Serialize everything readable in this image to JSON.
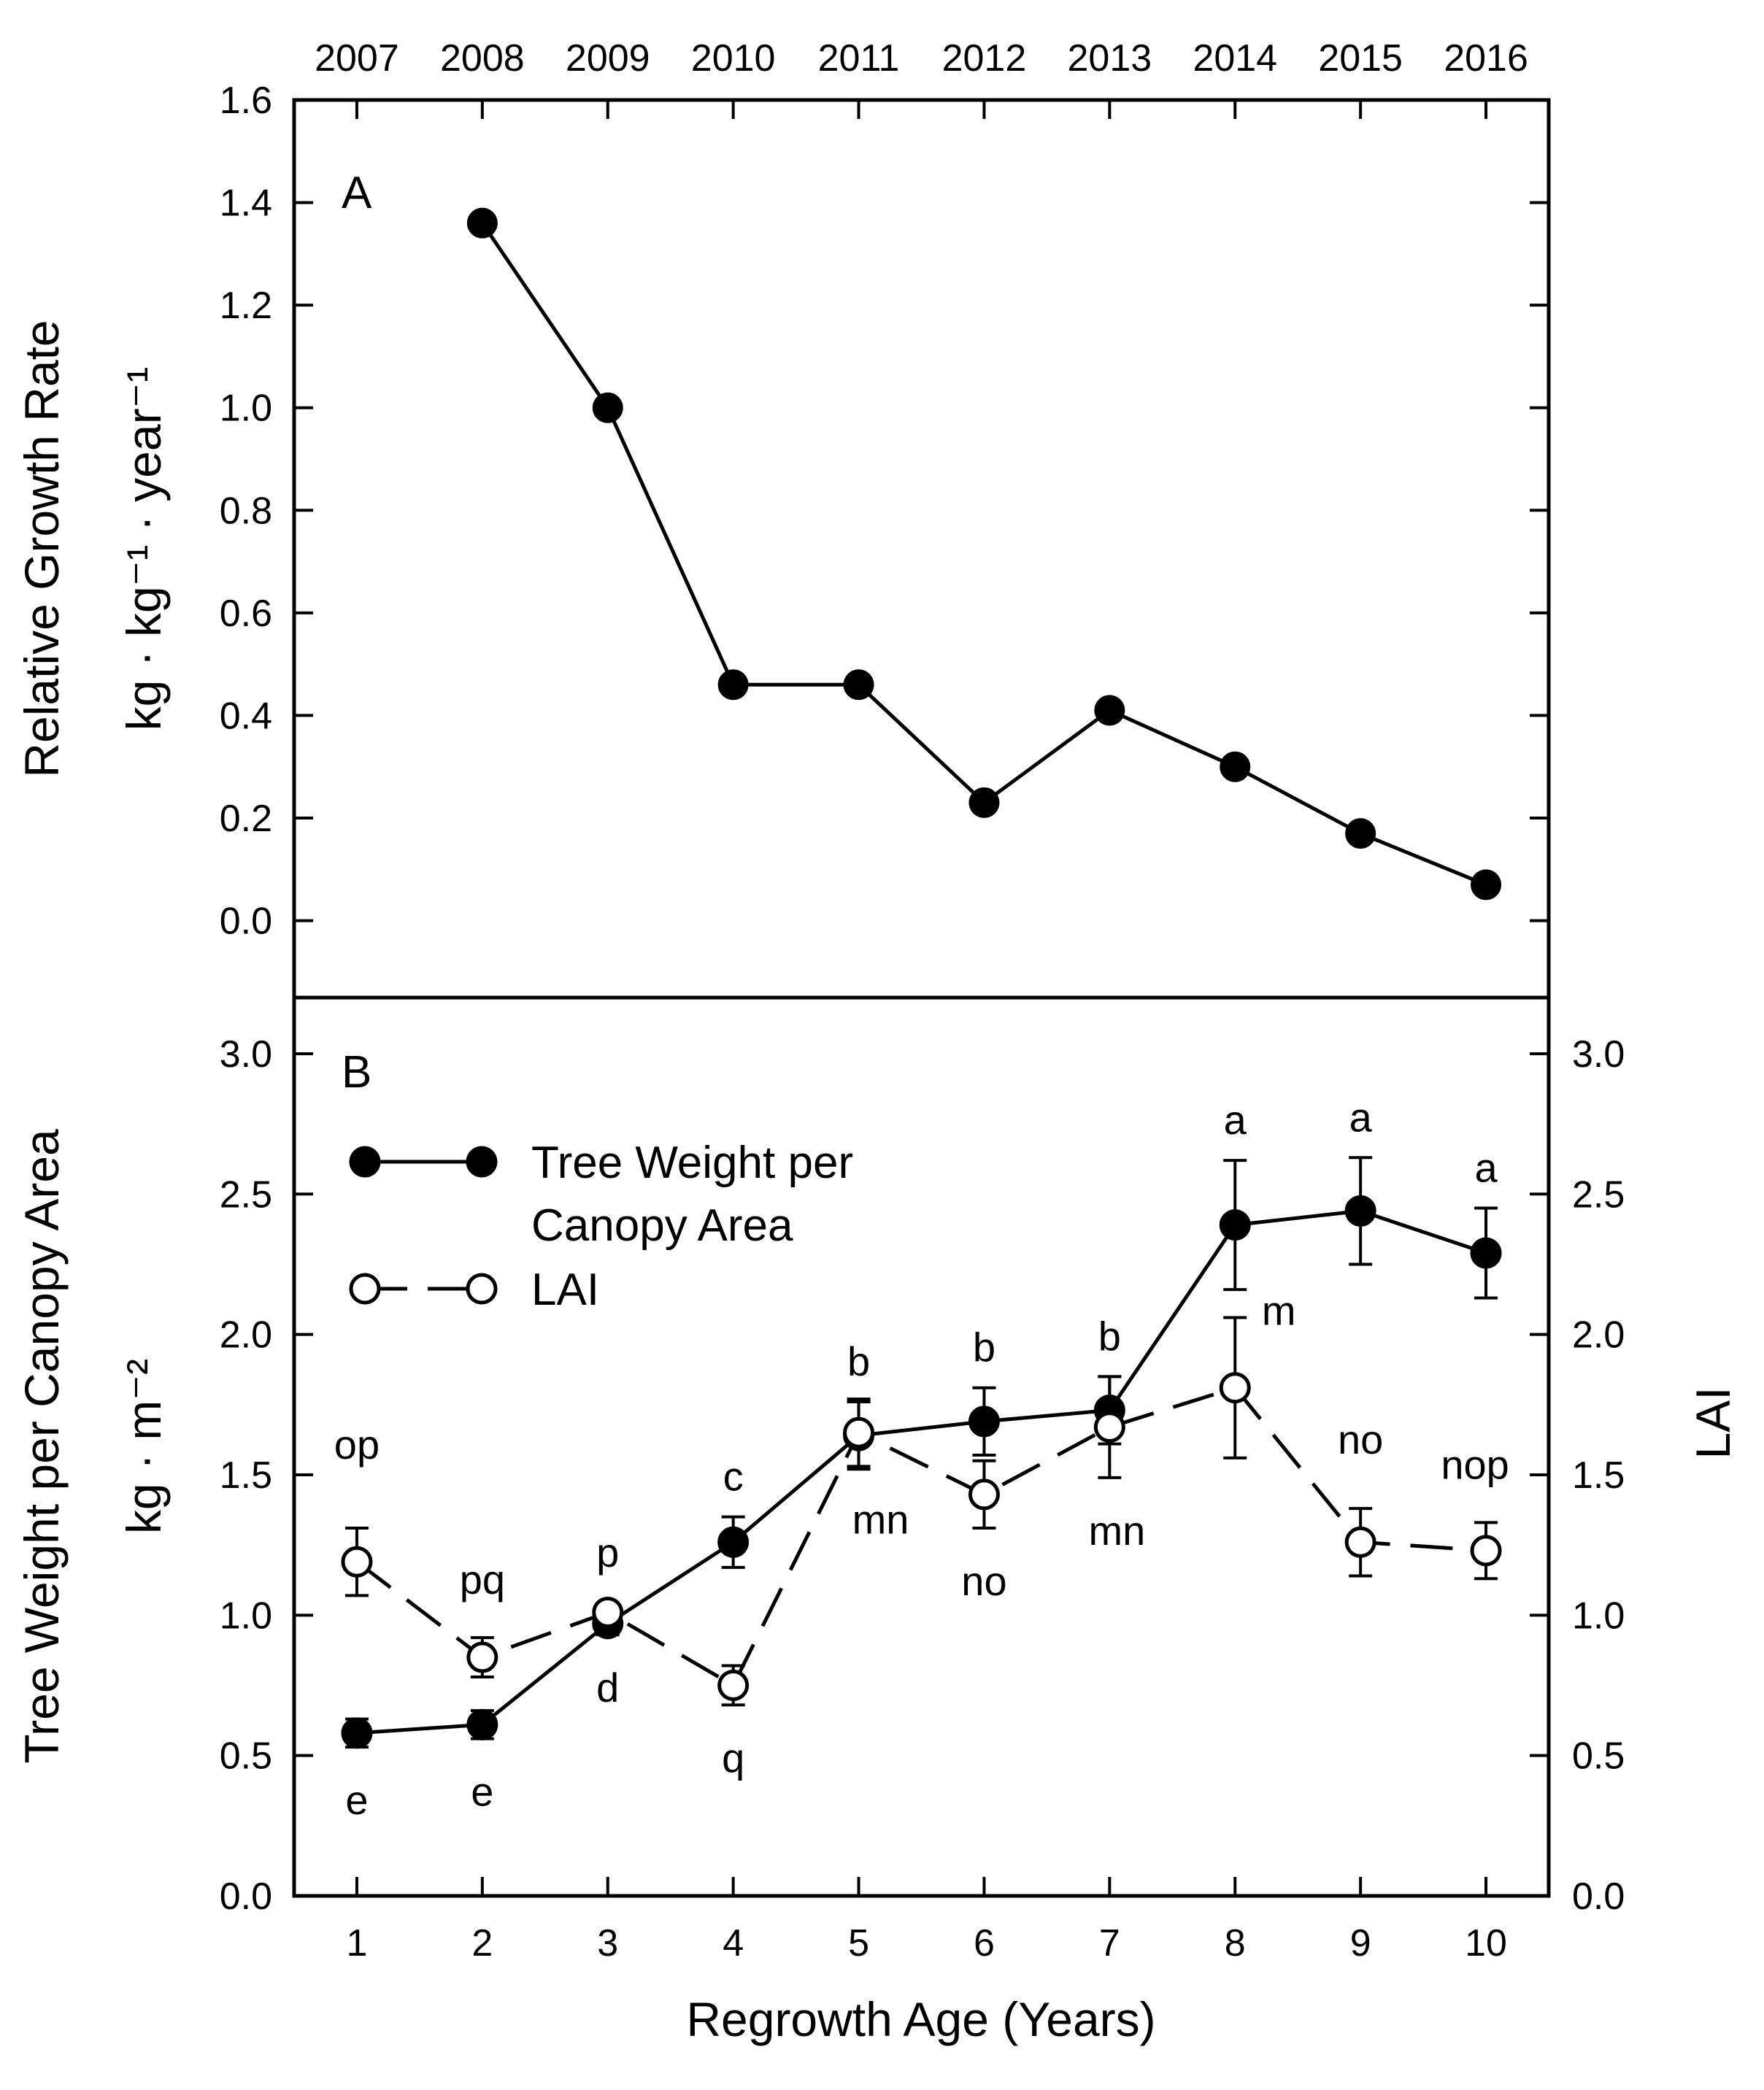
{
  "chart_data": [
    {
      "panel": "A",
      "type": "line",
      "top_axis_label": "",
      "top_ticks": [
        "2007",
        "2008",
        "2009",
        "2010",
        "2011",
        "2012",
        "2013",
        "2014",
        "2015",
        "2016"
      ],
      "ylabel_line1": "Relative Growth Rate",
      "ylabel_line2": "kg · kg⁻¹ · year⁻¹",
      "ylim": [
        -0.15,
        1.6
      ],
      "yticks": [
        0.0,
        0.2,
        0.4,
        0.6,
        0.8,
        1.0,
        1.2,
        1.4,
        1.6
      ],
      "xlim": [
        0.5,
        10.5
      ],
      "x": [
        2,
        3,
        4,
        5,
        6,
        7,
        8,
        9,
        10
      ],
      "values": [
        1.36,
        1.0,
        0.46,
        0.46,
        0.23,
        0.41,
        0.3,
        0.17,
        0.07
      ]
    },
    {
      "panel": "B",
      "type": "line",
      "xlabel": "Regrowth Age (Years)",
      "ylabel_line1": "Tree Weight per Canopy Area",
      "ylabel_line2": "kg · m⁻²",
      "y2label": "LAI",
      "ylim": [
        0,
        3.2
      ],
      "yticks": [
        0.0,
        0.5,
        1.0,
        1.5,
        2.0,
        2.5,
        3.0
      ],
      "xlim": [
        0.5,
        10.5
      ],
      "xticks": [
        1,
        2,
        3,
        4,
        5,
        6,
        7,
        8,
        9,
        10
      ],
      "series": [
        {
          "name": "Tree Weight per Canopy Area",
          "legend_line1": "Tree Weight per",
          "legend_line2": "Canopy Area",
          "marker": "filled-circle",
          "line": "solid",
          "x": [
            1,
            2,
            3,
            4,
            5,
            6,
            7,
            8,
            9,
            10
          ],
          "values": [
            0.58,
            0.61,
            0.97,
            1.26,
            1.64,
            1.69,
            1.73,
            2.39,
            2.44,
            2.29
          ],
          "errors": [
            0.05,
            0.05,
            0.04,
            0.09,
            0.12,
            0.12,
            0.12,
            0.23,
            0.19,
            0.16
          ],
          "letters": [
            "e",
            "e",
            "d",
            "c",
            "b",
            "b",
            "b",
            "a",
            "a",
            "a"
          ]
        },
        {
          "name": "LAI",
          "legend_line1": "LAI",
          "marker": "open-circle",
          "line": "dashed",
          "x": [
            1,
            2,
            3,
            4,
            5,
            6,
            7,
            8,
            9,
            10
          ],
          "values": [
            1.19,
            0.85,
            1.01,
            0.75,
            1.65,
            1.43,
            1.67,
            1.81,
            1.26,
            1.23
          ],
          "errors": [
            0.12,
            0.07,
            0.02,
            0.07,
            0.12,
            0.12,
            0.18,
            0.25,
            0.12,
            0.1
          ],
          "letters": [
            "op",
            "pq",
            "p",
            "q",
            "mn",
            "no",
            "mn",
            "m",
            "no",
            "nop"
          ]
        }
      ]
    }
  ]
}
